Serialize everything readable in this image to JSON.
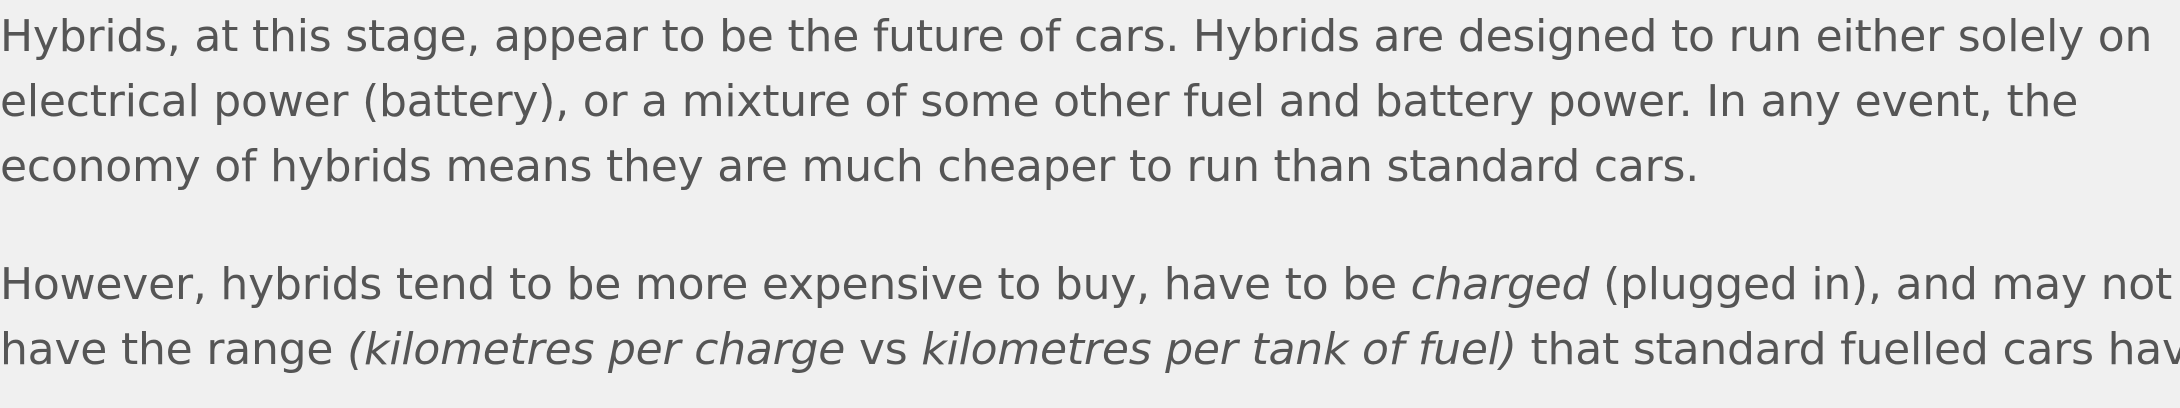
{
  "paragraphs": [
    {
      "lines": [
        "Hybrids, at this stage, appear to be the future of cars. Hybrids are designed to run either solely on",
        "electrical power (battery), or a mixture of some other fuel and battery power. In any event, the",
        "economy of hybrids means they are much cheaper to run than standard cars."
      ]
    },
    {
      "line1": {
        "before": "However, hybrids tend to be more expensive to buy, have to be ",
        "em": "charged",
        "after": " (plugged in), and may not"
      },
      "line2": {
        "before": "have the range ",
        "em1": "(kilometres per charge",
        "middle": " vs ",
        "em2": "kilometres per tank of fuel)",
        "after": " that standard fuelled cars have."
      }
    }
  ]
}
